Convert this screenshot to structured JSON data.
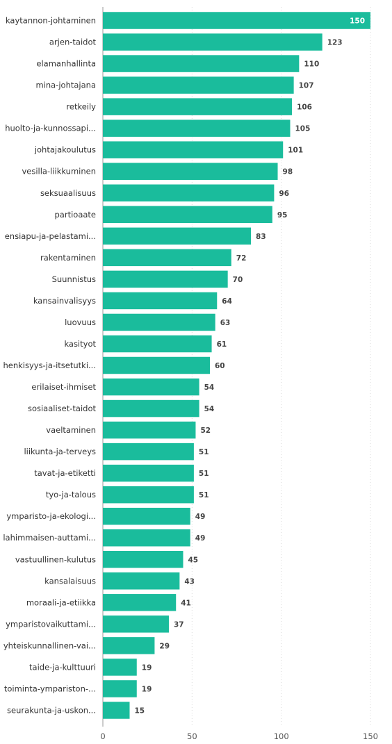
{
  "chart_data": {
    "type": "bar",
    "orientation": "horizontal",
    "title": "",
    "xlabel": "",
    "ylabel": "",
    "xlim": [
      0,
      150
    ],
    "x_ticks": [
      0,
      50,
      100,
      150
    ],
    "grid": true,
    "bar_color": "#1ABC9C",
    "categories": [
      "kaytannon-johtaminen",
      "arjen-taidot",
      "elamanhallinta",
      "mina-johtajana",
      "retkeily",
      "huolto-ja-kunnossapi...",
      "johtajakoulutus",
      "vesilla-liikkuminen",
      "seksuaalisuus",
      "partioaate",
      "ensiapu-ja-pelastami...",
      "rakentaminen",
      "Suunnistus",
      "kansainvalisyys",
      "luovuus",
      "kasityot",
      "henkisyys-ja-itsetutki...",
      "erilaiset-ihmiset",
      "sosiaaliset-taidot",
      "vaeltaminen",
      "liikunta-ja-terveys",
      "tavat-ja-etiketti",
      "tyo-ja-talous",
      "ymparisto-ja-ekologi...",
      "lahimmaisen-auttami...",
      "vastuullinen-kulutus",
      "kansalaisuus",
      "moraali-ja-etiikka",
      "ymparistovaikuttami...",
      "yhteiskunnallinen-vai...",
      "taide-ja-kulttuuri",
      "toiminta-ympariston-...",
      "seurakunta-ja-uskon..."
    ],
    "values": [
      150,
      123,
      110,
      107,
      106,
      105,
      101,
      98,
      96,
      95,
      83,
      72,
      70,
      64,
      63,
      61,
      60,
      54,
      54,
      52,
      51,
      51,
      51,
      49,
      49,
      45,
      43,
      41,
      37,
      29,
      19,
      19,
      15
    ]
  }
}
